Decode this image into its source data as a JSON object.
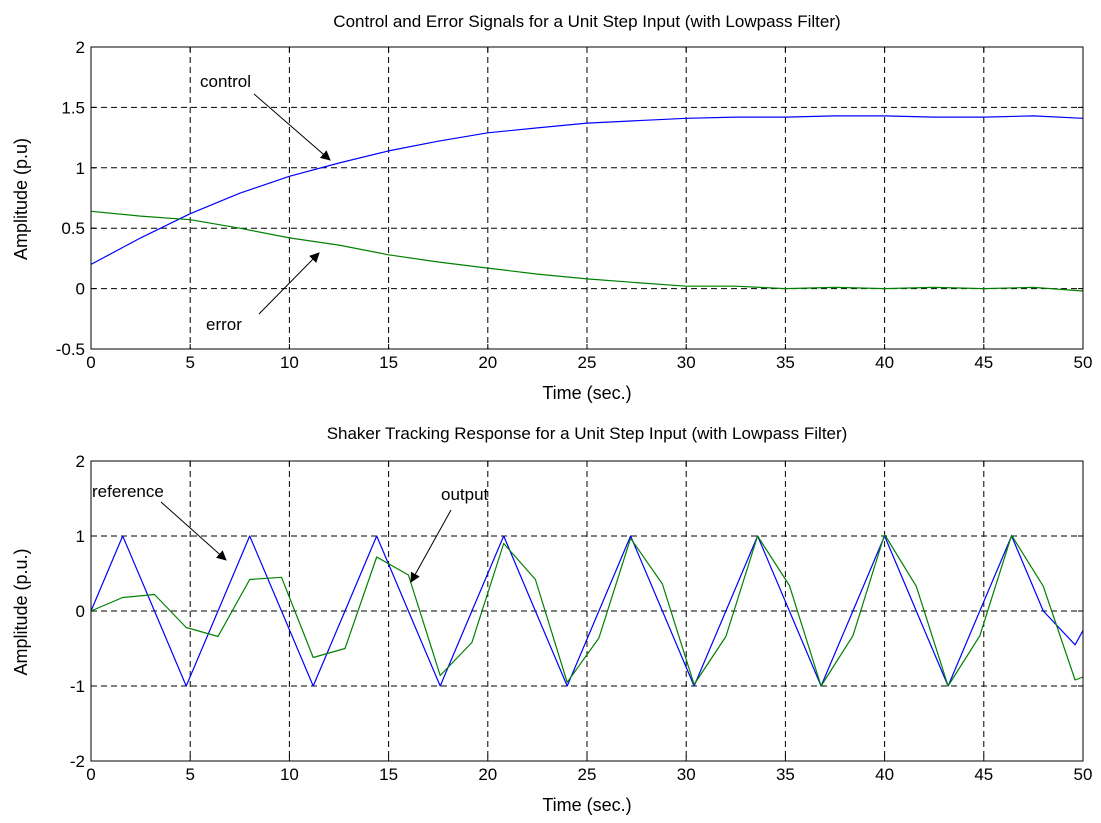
{
  "chart_data": [
    {
      "type": "line",
      "title": "Control and Error Signals for a Unit Step Input (with Lowpass Filter)",
      "xlabel": "Time (sec.)",
      "ylabel": "Amplitude (p.u)",
      "xlim": [
        0,
        50
      ],
      "ylim": [
        -0.5,
        2
      ],
      "x_ticks": [
        "0",
        "5",
        "10",
        "15",
        "20",
        "25",
        "30",
        "35",
        "40",
        "45",
        "50"
      ],
      "y_ticks": [
        "-0.5",
        "0",
        "0.5",
        "1",
        "1.5",
        "2"
      ],
      "grid": true,
      "x": [
        0,
        2.5,
        5,
        7.5,
        10,
        12.5,
        15,
        17.5,
        20,
        22.5,
        25,
        27.5,
        30,
        32.5,
        35,
        37.5,
        40,
        42.5,
        45,
        47.5,
        50
      ],
      "series": [
        {
          "name": "control",
          "color": "#0000ff",
          "values": [
            0.2,
            0.42,
            0.62,
            0.79,
            0.93,
            1.04,
            1.14,
            1.22,
            1.29,
            1.33,
            1.37,
            1.39,
            1.41,
            1.42,
            1.42,
            1.43,
            1.43,
            1.42,
            1.42,
            1.43,
            1.41
          ]
        },
        {
          "name": "error",
          "color": "#008000",
          "values": [
            0.64,
            0.6,
            0.57,
            0.5,
            0.42,
            0.36,
            0.28,
            0.22,
            0.17,
            0.12,
            0.08,
            0.05,
            0.02,
            0.02,
            0.0,
            0.01,
            0.0,
            0.01,
            0.0,
            0.01,
            -0.02
          ]
        }
      ],
      "annotations": [
        {
          "text": "control",
          "target": "control",
          "target_x": 12,
          "target_y": 1.05
        },
        {
          "text": "error",
          "target": "error",
          "target_x": 11.5,
          "target_y": 0.37
        }
      ]
    },
    {
      "type": "line",
      "title": "Shaker Tracking Response for a Unit Step Input (with Lowpass Filter)",
      "xlabel": "Time (sec.)",
      "ylabel": "Amplitude (p.u.)",
      "xlim": [
        0,
        50
      ],
      "ylim": [
        -2,
        2
      ],
      "x_ticks": [
        "0",
        "5",
        "10",
        "15",
        "20",
        "25",
        "30",
        "35",
        "40",
        "45",
        "50"
      ],
      "y_ticks": [
        "-2",
        "-1",
        "0",
        "1",
        "2"
      ],
      "grid": true,
      "x": [
        0,
        1.6,
        3.2,
        4.8,
        6.4,
        8.0,
        9.6,
        11.2,
        12.8,
        14.4,
        16.0,
        17.6,
        19.2,
        20.8,
        22.4,
        24.0,
        25.6,
        27.2,
        28.8,
        30.4,
        32.0,
        33.6,
        35.2,
        36.8,
        38.4,
        40.0,
        41.6,
        43.2,
        44.8,
        46.4,
        48.0,
        49.6,
        50
      ],
      "series": [
        {
          "name": "reference",
          "color": "#0000ff",
          "values": [
            0.0,
            1.0,
            0.0,
            -1.0,
            0.0,
            1.0,
            0.0,
            -1.0,
            0.0,
            1.0,
            0.0,
            -1.0,
            0.0,
            1.0,
            0.0,
            -1.0,
            0.0,
            1.0,
            0.0,
            -1.0,
            0.0,
            1.0,
            0.0,
            -1.0,
            0.0,
            1.0,
            0.0,
            -1.0,
            0.0,
            1.0,
            0.0,
            -0.45,
            -0.26
          ]
        },
        {
          "name": "output",
          "color": "#008000",
          "values": [
            0.0,
            0.18,
            0.22,
            -0.22,
            -0.34,
            0.42,
            0.45,
            -0.62,
            -0.5,
            0.72,
            0.48,
            -0.86,
            -0.42,
            0.9,
            0.42,
            -0.95,
            -0.36,
            0.97,
            0.36,
            -0.98,
            -0.34,
            1.0,
            0.34,
            -1.0,
            -0.33,
            1.02,
            0.33,
            -1.0,
            -0.33,
            1.01,
            0.33,
            -0.92,
            -0.88
          ]
        }
      ],
      "annotations": [
        {
          "text": "reference",
          "target": "reference",
          "target_x": 6.9,
          "target_y": 0.7
        },
        {
          "text": "output",
          "target": "output",
          "target_x": 16.1,
          "target_y": 0.35
        }
      ]
    }
  ]
}
